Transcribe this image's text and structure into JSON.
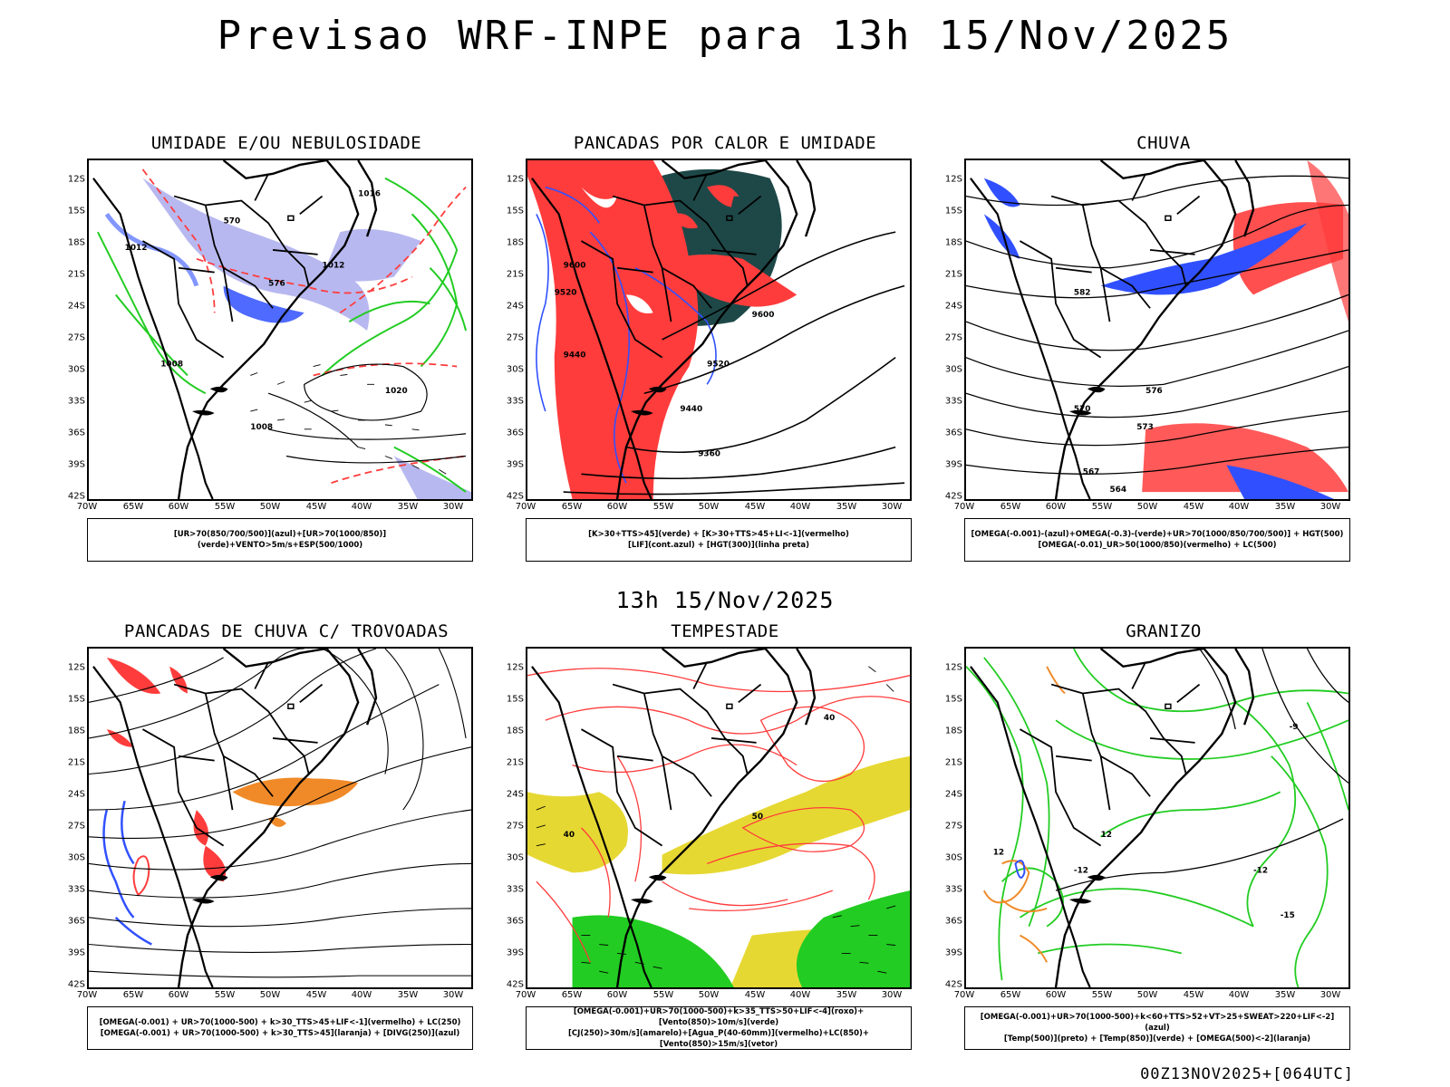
{
  "title": "Previsao WRF-INPE  para 13h 15/Nov/2025",
  "subtitle": "13h 15/Nov/2025",
  "footer": "00Z13NOV2025+[064UTC]",
  "axes": {
    "latitudes": [
      "12S",
      "15S",
      "18S",
      "21S",
      "24S",
      "27S",
      "30S",
      "33S",
      "36S",
      "39S",
      "42S"
    ],
    "longitudes": [
      "70W",
      "65W",
      "60W",
      "55W",
      "50W",
      "45W",
      "40W",
      "35W",
      "30W"
    ]
  },
  "colors": {
    "blue": "#3050ff",
    "light_blue": "#b8b8f0",
    "green": "#22cc22",
    "red": "#ff3c3c",
    "dark_teal": "#1e4848",
    "orange": "#f08a28",
    "yellow": "#e6d832"
  },
  "panels": [
    {
      "id": "umidade",
      "title": "UMIDADE E/OU NEBULOSIDADE",
      "legend": [
        "[UR>70(850/700/500)](azul)+[UR>70(1000/850)](verde)+VENTO>5m/s+ESP(500/1000)"
      ],
      "contour_labels": [
        "1008",
        "1012",
        "1016",
        "1020",
        "1008",
        "570",
        "576",
        "1012"
      ]
    },
    {
      "id": "pancadas-calor",
      "title": "PANCADAS POR CALOR E UMIDADE",
      "legend": [
        "[K>30+TTS>45](verde)  +  [K>30+TTS>45+LI<-1](vermelho)",
        "[LIF](cont.azul)  +  [HGT(300)](linha preta)"
      ],
      "contour_labels": [
        "9600",
        "9520",
        "9440",
        "9360",
        "9520",
        "9440",
        "9600"
      ]
    },
    {
      "id": "chuva",
      "title": "CHUVA",
      "legend": [
        "[OMEGA(-0.001)-(azul)+OMEGA(-0.3)-(verde)+UR>70(1000/850/700/500)]  +  HGT(500)",
        "[OMEGA(-0.01)_UR>50(1000/850)(vermelho)  +  LC(500)"
      ],
      "contour_labels": [
        "582",
        "576",
        "570",
        "573",
        "567",
        "564"
      ]
    },
    {
      "id": "pancadas-trovoadas",
      "title": "PANCADAS DE CHUVA C/ TROVOADAS",
      "legend": [
        "[OMEGA(-0.001)  +  UR>70(1000-500)  +  k>30_TTS>45+LIF<-1](vermelho)  +  LC(250)",
        "[OMEGA(-0.001)  +  UR>70(1000-500)  +  k>30_TTS>45](laranja)  +  [DIVG(250)](azul)"
      ],
      "contour_labels": []
    },
    {
      "id": "tempestade",
      "title": "TEMPESTADE",
      "legend": [
        "[OMEGA(-0.001)+UR>70(1000-500)+k>35_TTS>50+LIF<-4](roxo)+[Vento(850)>10m/s](verde)",
        "[CJ(250)>30m/s](amarelo)+[Agua_P(40-60mm)](vermelho)+LC(850)+[Vento(850)>15m/s](vetor)"
      ],
      "contour_labels": [
        "40",
        "50",
        "40"
      ]
    },
    {
      "id": "granizo",
      "title": "GRANIZO",
      "legend": [
        "[OMEGA(-0.001)+UR>70(1000-500)+k<60+TTS>52+VT>25+SWEAT>220+LIF<-2](azul)",
        "[Temp(500)](preto)  +  [Temp(850)](verde)  +  [OMEGA(500)<-2](laranja)"
      ],
      "contour_labels": [
        "-12",
        "-12",
        "-15",
        "12",
        "12",
        "-9"
      ]
    }
  ]
}
